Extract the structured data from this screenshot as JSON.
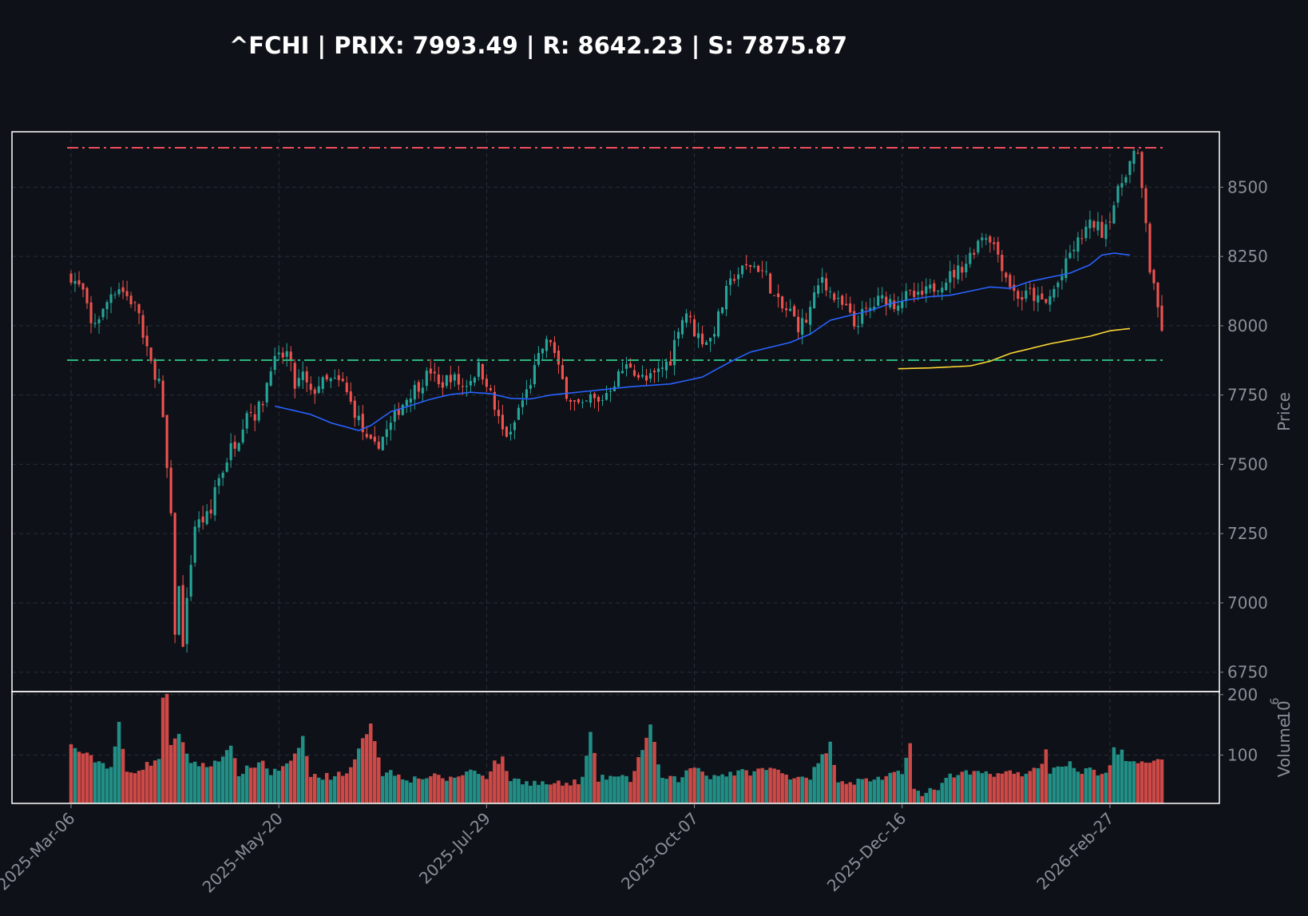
{
  "title": "^FCHI | PRIX: 7993.49 | R: 8642.23 | S: 7875.87",
  "colors": {
    "background": "#0e1117",
    "up": "#26a69a",
    "down": "#ef5350",
    "sma_fast": "#2962ff",
    "sma_slow": "#fdd835",
    "resistance": "#ef4d5c",
    "support": "#2bb57a",
    "frame": "#ffffff",
    "grid": "#2a2e39",
    "axis_text": "#8a8e96"
  },
  "chart_data": {
    "type": "candlestick",
    "ylabel": "Price",
    "volume_label": "Volume",
    "volume_exponent_label": "10",
    "volume_exponent": "6",
    "ylim": [
      6680,
      8700
    ],
    "volume_ylim": [
      20,
      205
    ],
    "y_ticks": [
      6750,
      7000,
      7250,
      7500,
      7750,
      8000,
      8250,
      8500
    ],
    "volume_ticks": [
      100,
      200
    ],
    "x_tick_labels": [
      "2025-Mar-06",
      "2025-May-20",
      "2025-Jul-29",
      "2025-Oct-07",
      "2025-Dec-16",
      "2026-Feb-27"
    ],
    "x_tick_index": [
      0,
      52,
      104,
      156,
      208,
      260
    ],
    "resistance": 8642.23,
    "support": 7875.87,
    "last_price": 7993.49,
    "grid": true,
    "sma_fast": {
      "start_index": 51,
      "anchors": [
        [
          51,
          7710
        ],
        [
          60,
          7680
        ],
        [
          65,
          7650
        ],
        [
          72,
          7622
        ],
        [
          75,
          7640
        ],
        [
          80,
          7690
        ],
        [
          90,
          7735
        ],
        [
          95,
          7752
        ],
        [
          100,
          7760
        ],
        [
          105,
          7755
        ],
        [
          110,
          7738
        ],
        [
          115,
          7736
        ],
        [
          120,
          7750
        ],
        [
          130,
          7765
        ],
        [
          140,
          7780
        ],
        [
          150,
          7790
        ],
        [
          158,
          7815
        ],
        [
          165,
          7870
        ],
        [
          170,
          7905
        ],
        [
          180,
          7940
        ],
        [
          185,
          7970
        ],
        [
          190,
          8020
        ],
        [
          200,
          8055
        ],
        [
          205,
          8080
        ],
        [
          210,
          8095
        ],
        [
          215,
          8105
        ],
        [
          220,
          8110
        ],
        [
          225,
          8125
        ],
        [
          230,
          8140
        ],
        [
          235,
          8135
        ],
        [
          240,
          8160
        ],
        [
          250,
          8190
        ],
        [
          255,
          8220
        ],
        [
          258,
          8255
        ],
        [
          261,
          8262
        ],
        [
          265,
          8255
        ]
      ]
    },
    "sma_slow": {
      "start_index": 207,
      "anchors": [
        [
          207,
          7845
        ],
        [
          215,
          7848
        ],
        [
          225,
          7855
        ],
        [
          230,
          7872
        ],
        [
          235,
          7900
        ],
        [
          245,
          7935
        ],
        [
          255,
          7962
        ],
        [
          260,
          7982
        ],
        [
          265,
          7990
        ]
      ]
    },
    "price_anchors": [
      [
        0,
        8180
      ],
      [
        3,
        8120
      ],
      [
        5,
        8000
      ],
      [
        8,
        8050
      ],
      [
        10,
        8120
      ],
      [
        12,
        8140
      ],
      [
        15,
        8090
      ],
      [
        17,
        8050
      ],
      [
        18,
        7950
      ],
      [
        20,
        7860
      ],
      [
        22,
        7800
      ],
      [
        23,
        7650
      ],
      [
        24,
        7480
      ],
      [
        25,
        7300
      ],
      [
        26,
        6900
      ],
      [
        27,
        7050
      ],
      [
        28,
        6860
      ],
      [
        29,
        7000
      ],
      [
        30,
        7150
      ],
      [
        31,
        7280
      ],
      [
        33,
        7300
      ],
      [
        35,
        7320
      ],
      [
        36,
        7420
      ],
      [
        38,
        7480
      ],
      [
        40,
        7560
      ],
      [
        42,
        7600
      ],
      [
        44,
        7700
      ],
      [
        46,
        7680
      ],
      [
        48,
        7730
      ],
      [
        50,
        7860
      ],
      [
        52,
        7880
      ],
      [
        54,
        7900
      ],
      [
        55,
        7850
      ],
      [
        56,
        7780
      ],
      [
        58,
        7820
      ],
      [
        60,
        7750
      ],
      [
        62,
        7790
      ],
      [
        65,
        7800
      ],
      [
        68,
        7790
      ],
      [
        70,
        7720
      ],
      [
        72,
        7660
      ],
      [
        74,
        7580
      ],
      [
        76,
        7560
      ],
      [
        78,
        7600
      ],
      [
        80,
        7640
      ],
      [
        82,
        7700
      ],
      [
        85,
        7760
      ],
      [
        88,
        7800
      ],
      [
        90,
        7840
      ],
      [
        92,
        7780
      ],
      [
        95,
        7820
      ],
      [
        98,
        7780
      ],
      [
        100,
        7810
      ],
      [
        102,
        7850
      ],
      [
        104,
        7800
      ],
      [
        106,
        7700
      ],
      [
        108,
        7620
      ],
      [
        110,
        7600
      ],
      [
        112,
        7700
      ],
      [
        114,
        7760
      ],
      [
        116,
        7840
      ],
      [
        118,
        7920
      ],
      [
        120,
        7950
      ],
      [
        122,
        7840
      ],
      [
        124,
        7760
      ],
      [
        126,
        7720
      ],
      [
        128,
        7700
      ],
      [
        130,
        7740
      ],
      [
        132,
        7720
      ],
      [
        134,
        7760
      ],
      [
        136,
        7800
      ],
      [
        138,
        7840
      ],
      [
        140,
        7860
      ],
      [
        142,
        7820
      ],
      [
        144,
        7800
      ],
      [
        146,
        7820
      ],
      [
        148,
        7850
      ],
      [
        150,
        7880
      ],
      [
        152,
        8000
      ],
      [
        154,
        8050
      ],
      [
        156,
        7980
      ],
      [
        158,
        7950
      ],
      [
        160,
        7950
      ],
      [
        162,
        8030
      ],
      [
        164,
        8120
      ],
      [
        166,
        8180
      ],
      [
        168,
        8200
      ],
      [
        170,
        8220
      ],
      [
        172,
        8210
      ],
      [
        174,
        8180
      ],
      [
        176,
        8100
      ],
      [
        178,
        8060
      ],
      [
        180,
        8050
      ],
      [
        182,
        8000
      ],
      [
        184,
        8020
      ],
      [
        186,
        8100
      ],
      [
        188,
        8180
      ],
      [
        190,
        8120
      ],
      [
        192,
        8080
      ],
      [
        194,
        8060
      ],
      [
        196,
        8000
      ],
      [
        198,
        8040
      ],
      [
        200,
        8060
      ],
      [
        202,
        8090
      ],
      [
        204,
        8100
      ],
      [
        206,
        8080
      ],
      [
        208,
        8100
      ],
      [
        210,
        8110
      ],
      [
        212,
        8100
      ],
      [
        214,
        8120
      ],
      [
        216,
        8140
      ],
      [
        218,
        8160
      ],
      [
        220,
        8180
      ],
      [
        222,
        8200
      ],
      [
        224,
        8230
      ],
      [
        226,
        8280
      ],
      [
        228,
        8330
      ],
      [
        230,
        8320
      ],
      [
        232,
        8260
      ],
      [
        234,
        8180
      ],
      [
        236,
        8120
      ],
      [
        238,
        8100
      ],
      [
        240,
        8120
      ],
      [
        242,
        8090
      ],
      [
        244,
        8080
      ],
      [
        246,
        8130
      ],
      [
        248,
        8180
      ],
      [
        250,
        8260
      ],
      [
        252,
        8300
      ],
      [
        254,
        8350
      ],
      [
        256,
        8370
      ],
      [
        258,
        8340
      ],
      [
        260,
        8400
      ],
      [
        262,
        8480
      ],
      [
        264,
        8560
      ],
      [
        266,
        8620
      ],
      [
        267,
        8600
      ],
      [
        269,
        8380
      ],
      [
        270,
        8200
      ],
      [
        271,
        8130
      ],
      [
        272,
        8060
      ],
      [
        273,
        7993
      ]
    ],
    "volume_anchors": [
      [
        0,
        115
      ],
      [
        5,
        95
      ],
      [
        10,
        80
      ],
      [
        12,
        150
      ],
      [
        14,
        70
      ],
      [
        18,
        80
      ],
      [
        22,
        95
      ],
      [
        23,
        190
      ],
      [
        24,
        205
      ],
      [
        25,
        120
      ],
      [
        27,
        130
      ],
      [
        30,
        90
      ],
      [
        34,
        80
      ],
      [
        40,
        110
      ],
      [
        42,
        70
      ],
      [
        48,
        90
      ],
      [
        50,
        70
      ],
      [
        55,
        85
      ],
      [
        58,
        130
      ],
      [
        60,
        65
      ],
      [
        65,
        65
      ],
      [
        70,
        75
      ],
      [
        75,
        155
      ],
      [
        78,
        70
      ],
      [
        80,
        72
      ],
      [
        85,
        60
      ],
      [
        90,
        65
      ],
      [
        95,
        60
      ],
      [
        100,
        75
      ],
      [
        104,
        65
      ],
      [
        106,
        88
      ],
      [
        108,
        92
      ],
      [
        110,
        60
      ],
      [
        115,
        55
      ],
      [
        120,
        52
      ],
      [
        125,
        52
      ],
      [
        128,
        60
      ],
      [
        130,
        135
      ],
      [
        132,
        60
      ],
      [
        135,
        65
      ],
      [
        140,
        60
      ],
      [
        145,
        145
      ],
      [
        148,
        60
      ],
      [
        152,
        60
      ],
      [
        156,
        82
      ],
      [
        160,
        65
      ],
      [
        165,
        70
      ],
      [
        170,
        72
      ],
      [
        175,
        78
      ],
      [
        180,
        65
      ],
      [
        185,
        65
      ],
      [
        190,
        118
      ],
      [
        192,
        60
      ],
      [
        195,
        55
      ],
      [
        200,
        60
      ],
      [
        205,
        65
      ],
      [
        208,
        70
      ],
      [
        210,
        125
      ],
      [
        211,
        50
      ],
      [
        212,
        40
      ],
      [
        213,
        30
      ],
      [
        215,
        40
      ],
      [
        218,
        50
      ],
      [
        220,
        65
      ],
      [
        225,
        70
      ],
      [
        230,
        70
      ],
      [
        235,
        70
      ],
      [
        240,
        70
      ],
      [
        243,
        90
      ],
      [
        244,
        105
      ],
      [
        245,
        75
      ],
      [
        248,
        85
      ],
      [
        250,
        85
      ],
      [
        252,
        70
      ],
      [
        255,
        75
      ],
      [
        258,
        70
      ],
      [
        260,
        78
      ],
      [
        261,
        110
      ],
      [
        262,
        100
      ],
      [
        263,
        110
      ],
      [
        264,
        85
      ],
      [
        266,
        90
      ],
      [
        273,
        90
      ]
    ]
  }
}
